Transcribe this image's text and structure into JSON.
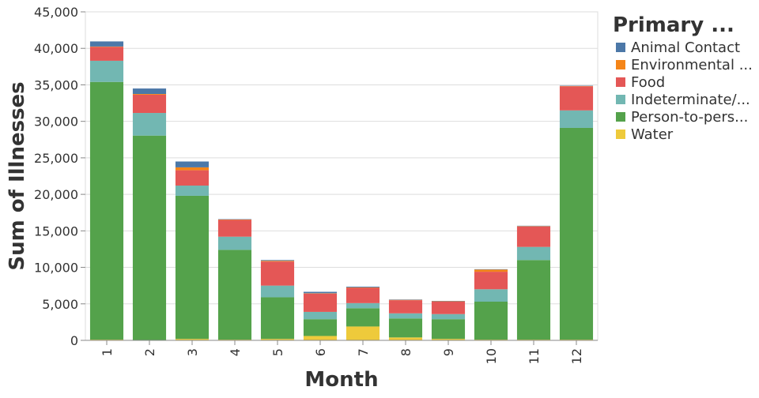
{
  "chart_data": {
    "type": "bar",
    "stacked": true,
    "xlabel": "Month",
    "ylabel": "Sum of Illnesses",
    "ylim": [
      0,
      45000
    ],
    "yticks": [
      0,
      5000,
      10000,
      15000,
      20000,
      25000,
      30000,
      35000,
      40000,
      45000
    ],
    "ytick_labels": [
      "0",
      "5,000",
      "10,000",
      "15,000",
      "20,000",
      "25,000",
      "30,000",
      "35,000",
      "40,000",
      "45,000"
    ],
    "categories": [
      "1",
      "2",
      "3",
      "4",
      "5",
      "6",
      "7",
      "8",
      "9",
      "10",
      "11",
      "12"
    ],
    "grid": true,
    "legend_position": "right",
    "legend_title": "Primary ...",
    "series": [
      {
        "name": "Water",
        "legend_label": "Water",
        "color": "#eeca3b",
        "values": [
          100,
          50,
          200,
          100,
          200,
          600,
          1900,
          400,
          200,
          100,
          100,
          100
        ]
      },
      {
        "name": "Person-to-person",
        "legend_label": "Person-to-pers...",
        "color": "#54a24b",
        "values": [
          35300,
          28000,
          19600,
          12300,
          5700,
          2300,
          2500,
          2600,
          2700,
          5200,
          10900,
          29000
        ]
      },
      {
        "name": "Indeterminate/Unknown",
        "legend_label": "Indeterminate/...",
        "color": "#72b7b2",
        "values": [
          2900,
          3100,
          1400,
          1800,
          1600,
          1000,
          700,
          700,
          700,
          1700,
          1800,
          2400
        ]
      },
      {
        "name": "Food",
        "legend_label": "Food",
        "color": "#e45756",
        "values": [
          1900,
          2500,
          2100,
          2300,
          3300,
          2500,
          2100,
          1800,
          1700,
          2400,
          2800,
          3300
        ]
      },
      {
        "name": "Environmental",
        "legend_label": "Environmental ...",
        "color": "#f58518",
        "values": [
          50,
          100,
          400,
          50,
          100,
          50,
          50,
          50,
          50,
          300,
          50,
          50
        ]
      },
      {
        "name": "Animal Contact",
        "legend_label": "Animal Contact",
        "color": "#4c78a8",
        "values": [
          700,
          750,
          800,
          50,
          100,
          200,
          100,
          50,
          50,
          50,
          50,
          50
        ]
      }
    ],
    "legend_order": [
      "Animal Contact",
      "Environmental",
      "Food",
      "Indeterminate/Unknown",
      "Person-to-person",
      "Water"
    ]
  }
}
